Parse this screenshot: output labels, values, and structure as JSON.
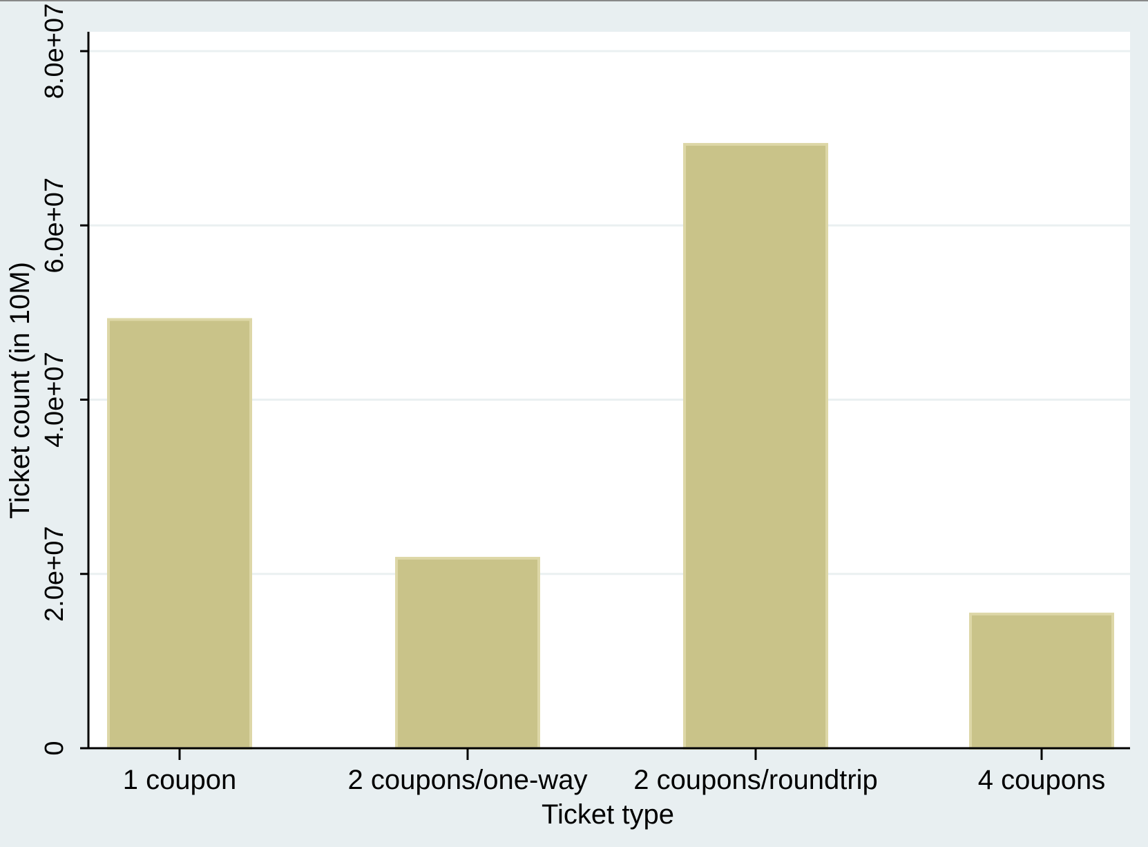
{
  "colors": {
    "outer_background": "#e8eff1",
    "plot_background": "#ffffff",
    "gridline": "#eaf0f1",
    "bar_fill": "#c9c389",
    "bar_edge": "#ddd7a7",
    "axis": "#000000",
    "text": "#000000"
  },
  "chart_data": {
    "type": "bar",
    "title": "",
    "xlabel": "Ticket type",
    "ylabel": "Ticket count (in 10M)",
    "categories": [
      "1 coupon",
      "2 coupons/one-way",
      "2 coupons/roundtrip",
      "4 coupons"
    ],
    "series": [
      {
        "values": [
          49200000,
          21800000,
          69300000,
          15400000
        ]
      }
    ],
    "ylim": [
      0,
      80000000
    ],
    "yticks": [
      {
        "value": 0,
        "label": "0"
      },
      {
        "value": 20000000,
        "label": "2.0e+07"
      },
      {
        "value": 40000000,
        "label": "4.0e+07"
      },
      {
        "value": 60000000,
        "label": "6.0e+07"
      },
      {
        "value": 80000000,
        "label": "8.0e+07"
      }
    ],
    "grid": true,
    "legend": "none"
  }
}
